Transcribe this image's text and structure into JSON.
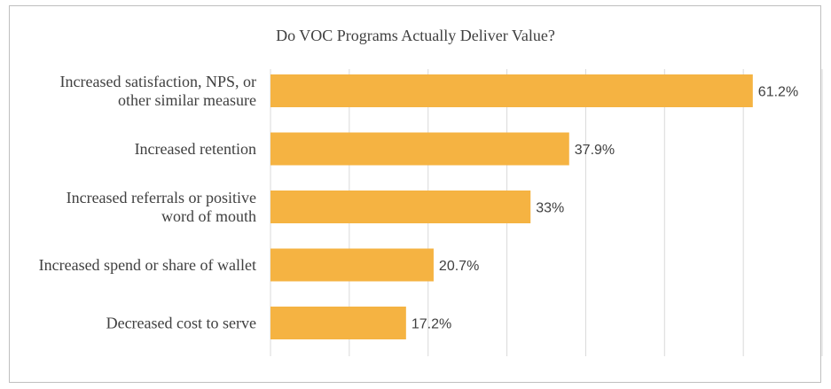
{
  "chart_data": {
    "type": "bar",
    "orientation": "horizontal",
    "title": "Do VOC Programs Actually Deliver Value?",
    "categories": [
      "Increased satisfaction, NPS, or other similar measure",
      "Increased retention",
      "Increased referrals or positive word of mouth",
      "Increased spend or share of wallet",
      "Decreased cost to serve"
    ],
    "category_lines": [
      [
        "Increased satisfaction, NPS, or",
        "other similar measure"
      ],
      [
        "Increased retention"
      ],
      [
        "Increased referrals or positive",
        "word of mouth"
      ],
      [
        "Increased spend or share of wallet"
      ],
      [
        "Decreased cost to serve"
      ]
    ],
    "values": [
      61.2,
      37.9,
      33,
      20.7,
      17.2
    ],
    "value_labels": [
      "61.2%",
      "37.9%",
      "33%",
      "20.7%",
      "17.2%"
    ],
    "xlim": [
      0,
      70
    ],
    "x_gridlines": [
      0,
      10,
      20,
      30,
      40,
      50,
      60,
      70
    ],
    "grid": true,
    "bar_color": "#F5B342",
    "grid_color": "#D9D9D9",
    "xlabel": "",
    "ylabel": ""
  }
}
